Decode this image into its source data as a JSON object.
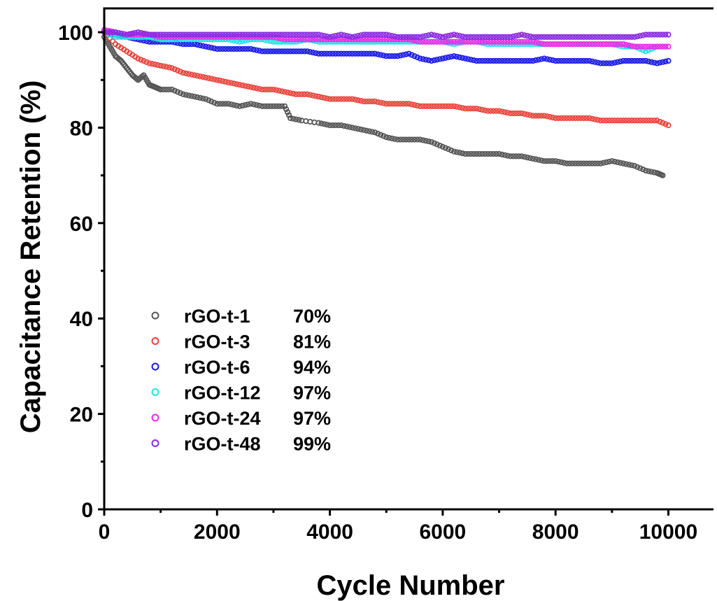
{
  "chart_data": {
    "type": "scatter",
    "xlabel": "Cycle Number",
    "ylabel": "Capacitance Retention (%)",
    "xlim": [
      0,
      10800
    ],
    "ylim": [
      0,
      105
    ],
    "x_ticks": [
      0,
      2000,
      4000,
      6000,
      8000,
      10000
    ],
    "x_tick_labels": [
      "0",
      "2000",
      "4000",
      "6000",
      "8000",
      "10000"
    ],
    "y_ticks": [
      0,
      20,
      40,
      60,
      80,
      100
    ],
    "y_tick_labels": [
      "0",
      "20",
      "40",
      "60",
      "80",
      "100"
    ],
    "legend_position": "lower-left",
    "marker": "open-circle",
    "series": [
      {
        "name": "rGO-t-1",
        "retention_label": "70%",
        "color": "#555555",
        "points": [
          [
            0,
            99
          ],
          [
            100,
            97
          ],
          [
            200,
            95
          ],
          [
            300,
            94
          ],
          [
            400,
            92.5
          ],
          [
            500,
            91
          ],
          [
            600,
            90
          ],
          [
            700,
            91
          ],
          [
            800,
            89
          ],
          [
            900,
            88.5
          ],
          [
            1000,
            88
          ],
          [
            1200,
            88
          ],
          [
            1400,
            87
          ],
          [
            1600,
            86.5
          ],
          [
            1800,
            86
          ],
          [
            2000,
            85
          ],
          [
            2200,
            85
          ],
          [
            2400,
            84.5
          ],
          [
            2600,
            85
          ],
          [
            2800,
            84.5
          ],
          [
            3000,
            84.5
          ],
          [
            3200,
            84.5
          ],
          [
            3300,
            82
          ],
          [
            3500,
            81.5
          ],
          [
            3800,
            81
          ],
          [
            4000,
            80.5
          ],
          [
            4200,
            80.5
          ],
          [
            4400,
            80
          ],
          [
            4600,
            79.5
          ],
          [
            4800,
            79
          ],
          [
            5000,
            78
          ],
          [
            5200,
            77.5
          ],
          [
            5400,
            77.5
          ],
          [
            5600,
            77.5
          ],
          [
            5800,
            77
          ],
          [
            6000,
            76
          ],
          [
            6200,
            75
          ],
          [
            6400,
            74.5
          ],
          [
            6600,
            74.5
          ],
          [
            6800,
            74.5
          ],
          [
            7000,
            74.5
          ],
          [
            7200,
            74
          ],
          [
            7400,
            74
          ],
          [
            7600,
            73.5
          ],
          [
            7800,
            73
          ],
          [
            8000,
            73
          ],
          [
            8200,
            72.5
          ],
          [
            8400,
            72.5
          ],
          [
            8600,
            72.5
          ],
          [
            8800,
            72.5
          ],
          [
            9000,
            73
          ],
          [
            9200,
            72.5
          ],
          [
            9400,
            72
          ],
          [
            9600,
            71
          ],
          [
            9800,
            70.5
          ],
          [
            9900,
            70
          ]
        ]
      },
      {
        "name": "rGO-t-3",
        "retention_label": "81%",
        "color": "#e8453c",
        "points": [
          [
            0,
            100
          ],
          [
            200,
            97.5
          ],
          [
            400,
            96
          ],
          [
            600,
            94.5
          ],
          [
            800,
            93.5
          ],
          [
            1000,
            93
          ],
          [
            1200,
            92.5
          ],
          [
            1400,
            91.5
          ],
          [
            1600,
            91
          ],
          [
            1800,
            90.5
          ],
          [
            2000,
            90
          ],
          [
            2200,
            89.5
          ],
          [
            2400,
            89
          ],
          [
            2600,
            88.5
          ],
          [
            2800,
            88
          ],
          [
            3000,
            88
          ],
          [
            3200,
            87.5
          ],
          [
            3400,
            87
          ],
          [
            3600,
            87
          ],
          [
            3800,
            86.5
          ],
          [
            4000,
            86
          ],
          [
            4200,
            86
          ],
          [
            4400,
            86
          ],
          [
            4600,
            85.5
          ],
          [
            4800,
            85.5
          ],
          [
            5000,
            85
          ],
          [
            5200,
            85
          ],
          [
            5400,
            85
          ],
          [
            5600,
            84.5
          ],
          [
            5800,
            84.5
          ],
          [
            6000,
            84.5
          ],
          [
            6200,
            84.5
          ],
          [
            6400,
            84
          ],
          [
            6600,
            84
          ],
          [
            6800,
            83.5
          ],
          [
            7000,
            83.5
          ],
          [
            7200,
            83
          ],
          [
            7400,
            83
          ],
          [
            7600,
            82.5
          ],
          [
            7800,
            82.5
          ],
          [
            8000,
            82
          ],
          [
            8200,
            82
          ],
          [
            8400,
            82
          ],
          [
            8600,
            82
          ],
          [
            8800,
            81.5
          ],
          [
            9000,
            81.5
          ],
          [
            9200,
            81.5
          ],
          [
            9400,
            81.5
          ],
          [
            9600,
            81.5
          ],
          [
            9800,
            81.5
          ],
          [
            10000,
            80.5
          ]
        ]
      },
      {
        "name": "rGO-t-6",
        "retention_label": "94%",
        "color": "#1a1ae6",
        "points": [
          [
            0,
            100
          ],
          [
            200,
            99.5
          ],
          [
            400,
            99
          ],
          [
            600,
            98.5
          ],
          [
            800,
            98
          ],
          [
            1000,
            98
          ],
          [
            1200,
            98
          ],
          [
            1400,
            97.5
          ],
          [
            1600,
            97.5
          ],
          [
            1800,
            97
          ],
          [
            2000,
            96.5
          ],
          [
            2200,
            96.5
          ],
          [
            2400,
            96.5
          ],
          [
            2600,
            96.5
          ],
          [
            2800,
            96
          ],
          [
            3000,
            96
          ],
          [
            3200,
            96
          ],
          [
            3400,
            96
          ],
          [
            3600,
            96
          ],
          [
            3800,
            95.5
          ],
          [
            4000,
            95.5
          ],
          [
            4200,
            95.5
          ],
          [
            4400,
            95.5
          ],
          [
            4600,
            95.5
          ],
          [
            4800,
            95.5
          ],
          [
            5000,
            95
          ],
          [
            5200,
            95
          ],
          [
            5400,
            95.5
          ],
          [
            5600,
            94.5
          ],
          [
            5800,
            94
          ],
          [
            6000,
            94.5
          ],
          [
            6200,
            95
          ],
          [
            6400,
            94.5
          ],
          [
            6600,
            94
          ],
          [
            6800,
            94
          ],
          [
            7000,
            94
          ],
          [
            7200,
            94
          ],
          [
            7400,
            94
          ],
          [
            7600,
            94
          ],
          [
            7800,
            94.5
          ],
          [
            8000,
            94
          ],
          [
            8200,
            94
          ],
          [
            8400,
            94
          ],
          [
            8600,
            94
          ],
          [
            8800,
            93.5
          ],
          [
            9000,
            93.5
          ],
          [
            9200,
            94
          ],
          [
            9400,
            94
          ],
          [
            9600,
            94
          ],
          [
            9800,
            93.5
          ],
          [
            10000,
            94
          ]
        ]
      },
      {
        "name": "rGO-t-12",
        "retention_label": "97%",
        "color": "#22e3e3",
        "points": [
          [
            0,
            100
          ],
          [
            200,
            99
          ],
          [
            400,
            99
          ],
          [
            600,
            99
          ],
          [
            800,
            99
          ],
          [
            1000,
            98.5
          ],
          [
            1200,
            98.5
          ],
          [
            1400,
            98.5
          ],
          [
            1600,
            98.5
          ],
          [
            1800,
            98.5
          ],
          [
            2000,
            98.5
          ],
          [
            2200,
            98.5
          ],
          [
            2400,
            98
          ],
          [
            2600,
            98.5
          ],
          [
            2800,
            98.5
          ],
          [
            3000,
            98
          ],
          [
            3200,
            98
          ],
          [
            3400,
            98
          ],
          [
            3600,
            98.5
          ],
          [
            3800,
            98
          ],
          [
            4000,
            98
          ],
          [
            4200,
            98
          ],
          [
            4400,
            98
          ],
          [
            4600,
            98
          ],
          [
            4800,
            98
          ],
          [
            5000,
            98
          ],
          [
            5200,
            98
          ],
          [
            5400,
            98
          ],
          [
            5600,
            98
          ],
          [
            5800,
            98
          ],
          [
            6000,
            98
          ],
          [
            6200,
            97.5
          ],
          [
            6400,
            98
          ],
          [
            6600,
            98
          ],
          [
            6800,
            97.5
          ],
          [
            7000,
            97.5
          ],
          [
            7200,
            97.5
          ],
          [
            7400,
            97.5
          ],
          [
            7600,
            97.5
          ],
          [
            7800,
            97.5
          ],
          [
            8000,
            97.5
          ],
          [
            8200,
            97.5
          ],
          [
            8400,
            97.5
          ],
          [
            8600,
            97.5
          ],
          [
            8800,
            97.5
          ],
          [
            9000,
            97.5
          ],
          [
            9200,
            97
          ],
          [
            9400,
            97
          ],
          [
            9600,
            96
          ],
          [
            9800,
            97
          ],
          [
            10000,
            97
          ]
        ]
      },
      {
        "name": "rGO-t-24",
        "retention_label": "97%",
        "color": "#ea2ce6",
        "points": [
          [
            0,
            100.5
          ],
          [
            200,
            100
          ],
          [
            400,
            99.5
          ],
          [
            600,
            99.5
          ],
          [
            800,
            99.5
          ],
          [
            1000,
            99
          ],
          [
            1200,
            99
          ],
          [
            1400,
            99
          ],
          [
            1600,
            99
          ],
          [
            1800,
            99
          ],
          [
            2000,
            99
          ],
          [
            2200,
            99
          ],
          [
            2400,
            99
          ],
          [
            2600,
            99
          ],
          [
            2800,
            99
          ],
          [
            3000,
            99
          ],
          [
            3200,
            98.5
          ],
          [
            3400,
            98.5
          ],
          [
            3600,
            98.5
          ],
          [
            3800,
            98.5
          ],
          [
            4000,
            98.5
          ],
          [
            4200,
            98.5
          ],
          [
            4400,
            98.5
          ],
          [
            4600,
            98.5
          ],
          [
            4800,
            98.5
          ],
          [
            5000,
            98.5
          ],
          [
            5200,
            98.5
          ],
          [
            5400,
            98.5
          ],
          [
            5600,
            98
          ],
          [
            5800,
            98
          ],
          [
            6000,
            98
          ],
          [
            6200,
            98
          ],
          [
            6400,
            98
          ],
          [
            6600,
            98
          ],
          [
            6800,
            98
          ],
          [
            7000,
            98
          ],
          [
            7200,
            98
          ],
          [
            7400,
            98
          ],
          [
            7600,
            98
          ],
          [
            7800,
            97.5
          ],
          [
            8000,
            97.5
          ],
          [
            8200,
            97.5
          ],
          [
            8400,
            97.5
          ],
          [
            8600,
            97.5
          ],
          [
            8800,
            97.5
          ],
          [
            9000,
            97.5
          ],
          [
            9200,
            97.5
          ],
          [
            9400,
            97
          ],
          [
            9600,
            97
          ],
          [
            9800,
            97
          ],
          [
            10000,
            97
          ]
        ]
      },
      {
        "name": "rGO-t-48",
        "retention_label": "99%",
        "color": "#8a2be2",
        "points": [
          [
            0,
            100
          ],
          [
            200,
            100
          ],
          [
            400,
            99.5
          ],
          [
            600,
            100
          ],
          [
            800,
            99.5
          ],
          [
            1000,
            99.5
          ],
          [
            1200,
            99.5
          ],
          [
            1400,
            99.5
          ],
          [
            1600,
            99.5
          ],
          [
            1800,
            99.5
          ],
          [
            2000,
            99.5
          ],
          [
            2200,
            99.5
          ],
          [
            2400,
            99.5
          ],
          [
            2600,
            99.5
          ],
          [
            2800,
            99.5
          ],
          [
            3000,
            99.5
          ],
          [
            3200,
            99.5
          ],
          [
            3400,
            99.5
          ],
          [
            3600,
            99.5
          ],
          [
            3800,
            99.5
          ],
          [
            4000,
            99
          ],
          [
            4200,
            99.5
          ],
          [
            4400,
            99
          ],
          [
            4600,
            99.5
          ],
          [
            4800,
            99.5
          ],
          [
            5000,
            99.5
          ],
          [
            5200,
            99
          ],
          [
            5400,
            99
          ],
          [
            5600,
            99
          ],
          [
            5800,
            99.5
          ],
          [
            6000,
            99
          ],
          [
            6200,
            99.5
          ],
          [
            6400,
            99
          ],
          [
            6600,
            99
          ],
          [
            6800,
            99
          ],
          [
            7000,
            99
          ],
          [
            7200,
            99
          ],
          [
            7400,
            99.5
          ],
          [
            7600,
            99
          ],
          [
            7800,
            99
          ],
          [
            8000,
            99
          ],
          [
            8200,
            99
          ],
          [
            8400,
            99
          ],
          [
            8600,
            99
          ],
          [
            8800,
            99
          ],
          [
            9000,
            99
          ],
          [
            9200,
            99
          ],
          [
            9400,
            99
          ],
          [
            9600,
            99.5
          ],
          [
            9800,
            99.5
          ],
          [
            10000,
            99.5
          ]
        ]
      }
    ]
  }
}
